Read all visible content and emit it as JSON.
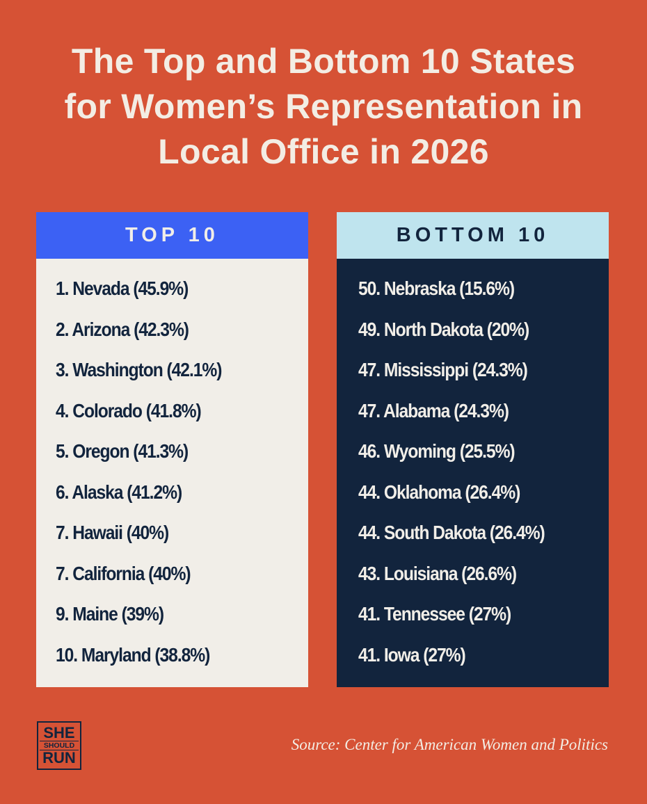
{
  "title": [
    "The Top and Bottom 10 States",
    "for Women’s Representation in",
    "Local Office in 2026"
  ],
  "top": {
    "header": "TOP 10",
    "items": [
      "1. Nevada (45.9%)",
      "2. Arizona (42.3%)",
      "3. Washington (42.1%)",
      "4. Colorado (41.8%)",
      "5. Oregon (41.3%)",
      "6. Alaska (41.2%)",
      "7. Hawaii (40%)",
      "7. California (40%)",
      "9. Maine (39%)",
      "10. Maryland (38.8%)"
    ]
  },
  "bottom": {
    "header": "BOTTOM 10",
    "items": [
      "50. Nebraska (15.6%)",
      "49. North Dakota (20%)",
      "47. Mississippi (24.3%)",
      "47. Alabama (24.3%)",
      "46. Wyoming (25.5%)",
      "44. Oklahoma (26.4%)",
      "44. South Dakota (26.4%)",
      "43. Louisiana (26.6%)",
      "41. Tennessee (27%)",
      "41. Iowa (27%)"
    ]
  },
  "logo": {
    "line1": "SHE",
    "line2": "SHOULD",
    "line3": "RUN"
  },
  "source": "Source: Center for American Women and Politics",
  "colors": {
    "background": "#d65235",
    "top_header": "#3c61f4",
    "bottom_header": "#bfe4ee",
    "navy": "#12243d",
    "cream": "#f1eee8"
  }
}
